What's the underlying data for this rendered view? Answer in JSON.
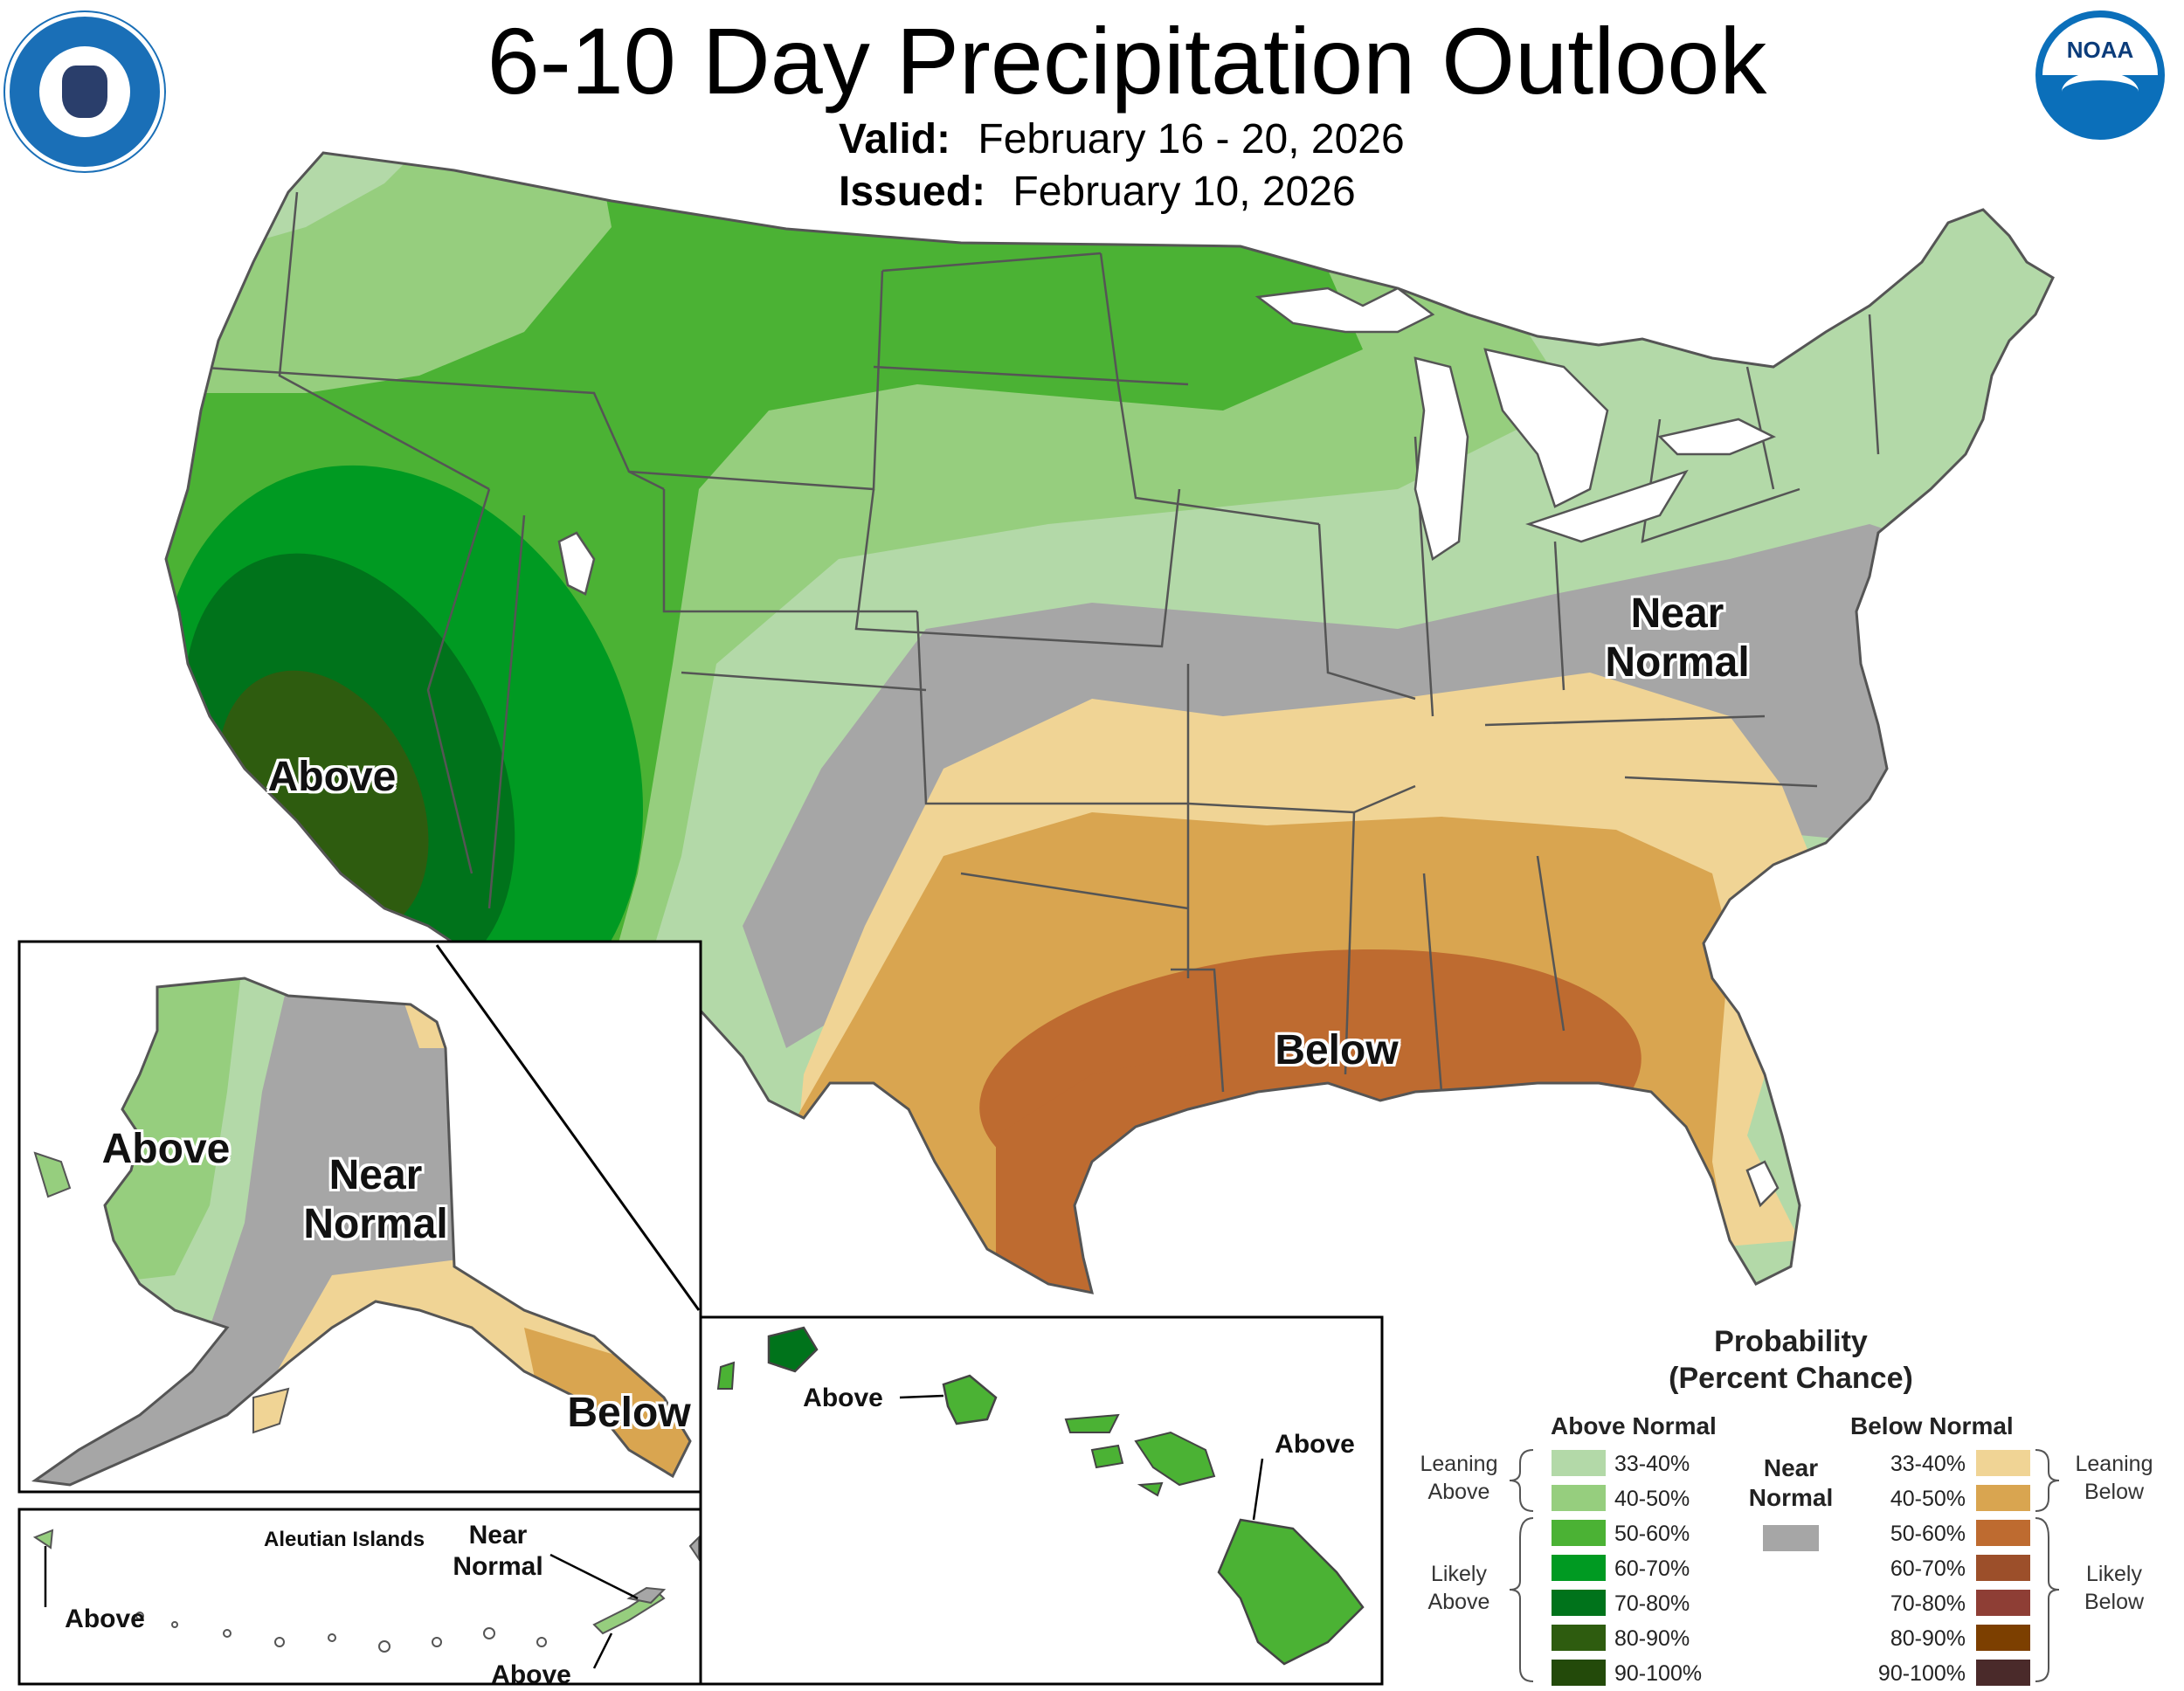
{
  "header": {
    "title": "6-10 Day Precipitation Outlook",
    "valid_label": "Valid:",
    "valid_dates": "February 16 - 20, 2026",
    "issued_label": "Issued:",
    "issued_date": "February 10, 2026"
  },
  "logos": {
    "commerce_seal_text": "DEPARTMENT OF COMMERCE · UNITED STATES OF AMERICA",
    "noaa_logo_text": "NOAA"
  },
  "map_labels": {
    "conus_above": "Above",
    "conus_below": "Below",
    "conus_near_normal_line1": "Near",
    "conus_near_normal_line2": "Normal",
    "alaska_above": "Above",
    "alaska_near_normal_line1": "Near",
    "alaska_near_normal_line2": "Normal",
    "alaska_below": "Below",
    "aleutian_title": "Aleutian Islands",
    "aleutian_above_left": "Above",
    "aleutian_near_line1": "Near",
    "aleutian_near_line2": "Normal",
    "aleutian_above_right": "Above",
    "hawaii_above_left": "Above",
    "hawaii_above_right": "Above"
  },
  "legend": {
    "title_line1": "Probability",
    "title_line2": "(Percent Chance)",
    "above_header": "Above Normal",
    "below_header": "Below Normal",
    "near_header_line1": "Near",
    "near_header_line2": "Normal",
    "near_color": "#a6a6a6",
    "leaning_above_line1": "Leaning",
    "leaning_above_line2": "Above",
    "likely_above_line1": "Likely",
    "likely_above_line2": "Above",
    "leaning_below_line1": "Leaning",
    "leaning_below_line2": "Below",
    "likely_below_line1": "Likely",
    "likely_below_line2": "Below",
    "above_categories": [
      {
        "label": "33-40%",
        "color": "#b3d9a8"
      },
      {
        "label": "40-50%",
        "color": "#96ce7e"
      },
      {
        "label": "50-60%",
        "color": "#4bb234"
      },
      {
        "label": "60-70%",
        "color": "#009a22"
      },
      {
        "label": "70-80%",
        "color": "#00731b"
      },
      {
        "label": "80-90%",
        "color": "#2e5c0f"
      },
      {
        "label": "90-100%",
        "color": "#234a0a"
      }
    ],
    "below_categories": [
      {
        "label": "33-40%",
        "color": "#f0d495"
      },
      {
        "label": "40-50%",
        "color": "#d9a550"
      },
      {
        "label": "50-60%",
        "color": "#be6b30"
      },
      {
        "label": "60-70%",
        "color": "#9c4f2a"
      },
      {
        "label": "70-80%",
        "color": "#8e3e35"
      },
      {
        "label": "80-90%",
        "color": "#7c3f00"
      },
      {
        "label": "90-100%",
        "color": "#4a2a2a"
      }
    ]
  }
}
